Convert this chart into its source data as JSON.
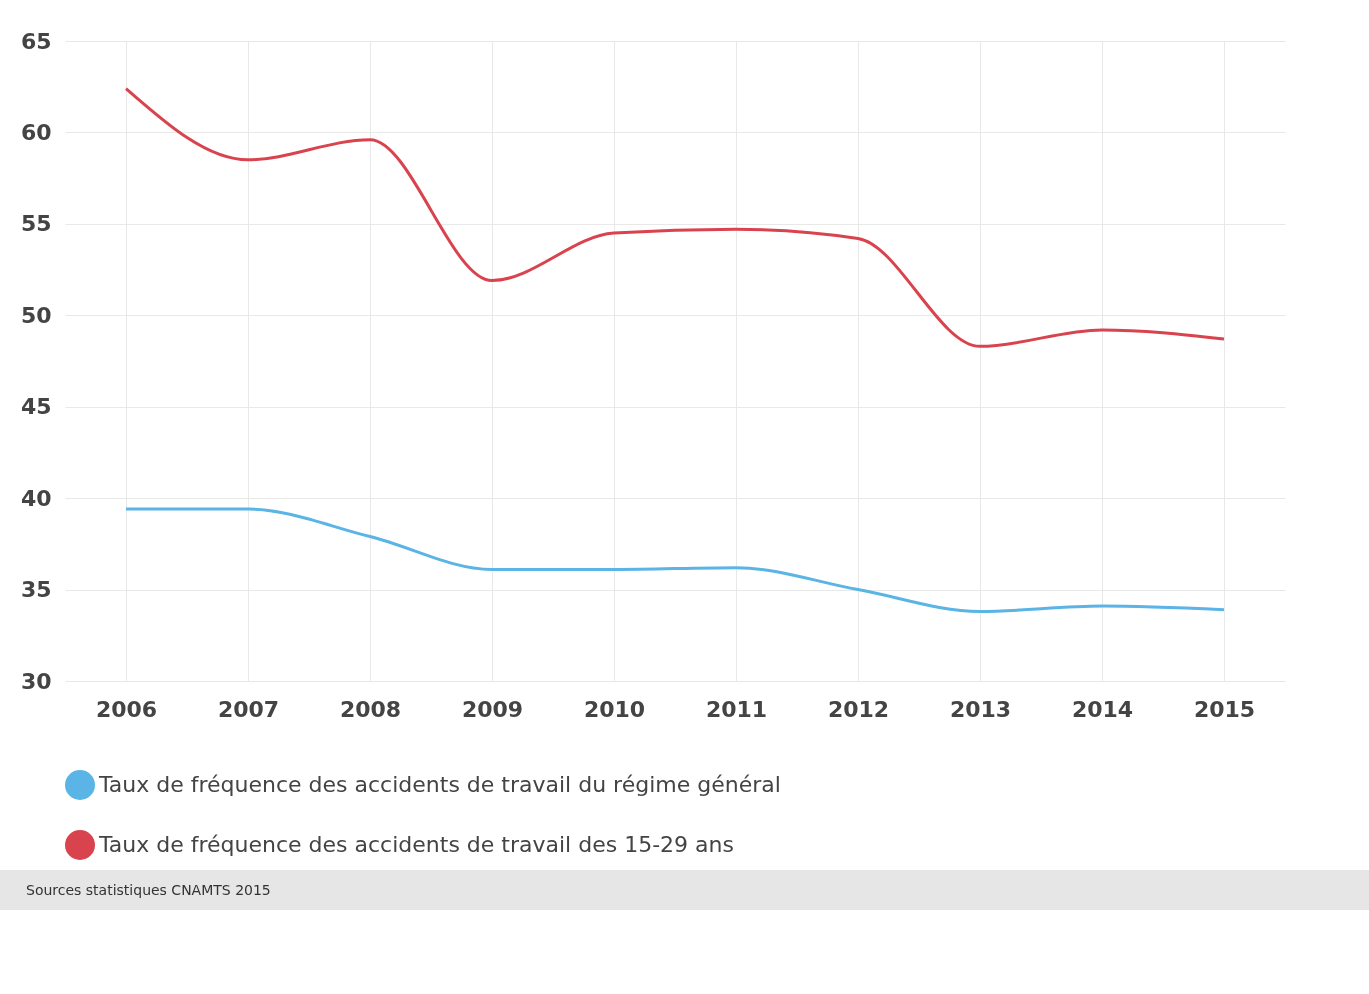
{
  "chart_data": {
    "type": "line",
    "categories": [
      "2006",
      "2007",
      "2008",
      "2009",
      "2010",
      "2011",
      "2012",
      "2013",
      "2014",
      "2015"
    ],
    "series": [
      {
        "name": "Taux de fréquence des accidents de travail du régime général",
        "color": "#5ab4e5",
        "values": [
          39.4,
          39.4,
          37.9,
          36.1,
          36.1,
          36.2,
          35.0,
          33.8,
          34.1,
          33.9
        ]
      },
      {
        "name": "Taux de fréquence des accidents de travail des 15-29 ans",
        "color": "#d9434e",
        "values": [
          62.4,
          58.5,
          59.6,
          51.9,
          54.5,
          54.7,
          54.2,
          48.3,
          49.2,
          48.7
        ]
      }
    ],
    "ylim": [
      30,
      65
    ],
    "yticks": [
      30,
      35,
      40,
      45,
      50,
      55,
      60,
      65
    ],
    "grid": true,
    "legend": "bottom",
    "marker": "none",
    "line_style": "solid",
    "annotations": [
      "Sources statistiques CNAMTS 2015"
    ]
  }
}
